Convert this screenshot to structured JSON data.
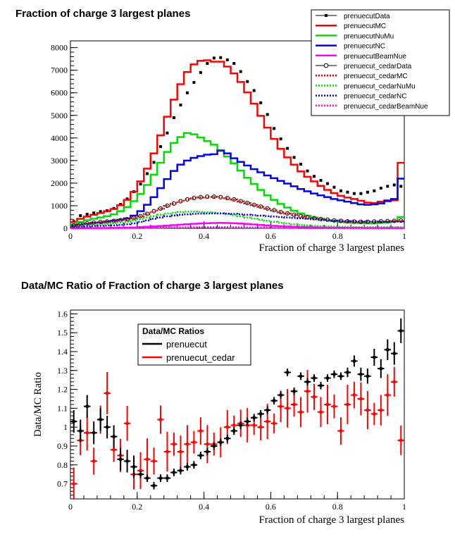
{
  "chart_data": [
    {
      "type": "line",
      "title": "Fraction of charge 3 largest planes",
      "xlabel": "Fraction of charge 3 largest planes",
      "ylabel": "",
      "xlim": [
        0,
        1
      ],
      "ylim": [
        0,
        8300
      ],
      "xticks": [
        "0",
        "0.2",
        "0.4",
        "0.6",
        "0.8",
        "1"
      ],
      "yticks": [
        "0",
        "1000",
        "2000",
        "3000",
        "4000",
        "5000",
        "6000",
        "7000",
        "8000"
      ],
      "bin_edges_step": 0.02,
      "series": [
        {
          "name": "prenuecutData",
          "style": "points",
          "color": "#000000",
          "values": [
            300,
            560,
            620,
            680,
            740,
            780,
            880,
            1060,
            1300,
            1620,
            1960,
            2420,
            2920,
            3620,
            4220,
            4900,
            5460,
            6000,
            6460,
            6900,
            7300,
            7540,
            7560,
            7460,
            7300,
            6940,
            6500,
            6100,
            5560,
            5040,
            4420,
            3960,
            3540,
            3140,
            2840,
            2540,
            2300,
            2120,
            1980,
            1820,
            1660,
            1600,
            1540,
            1540,
            1600,
            1660,
            1780,
            1860,
            1920,
            1860
          ]
        },
        {
          "name": "prenuecutMC",
          "style": "hist",
          "color": "#ff0000",
          "values": [
            280,
            420,
            520,
            600,
            680,
            760,
            860,
            1020,
            1260,
            1620,
            2080,
            2640,
            3320,
            4120,
            4940,
            5700,
            6380,
            6920,
            7260,
            7420,
            7440,
            7380,
            7380,
            7160,
            6860,
            6480,
            6020,
            5520,
            4980,
            4460,
            3960,
            3520,
            3140,
            2820,
            2520,
            2280,
            2080,
            1880,
            1700,
            1560,
            1440,
            1360,
            1300,
            1220,
            1140,
            1120,
            1180,
            1240,
            1240,
            2900
          ]
        },
        {
          "name": "prenuecutNuMu",
          "style": "hist",
          "color": "#00dd00",
          "values": [
            180,
            280,
            360,
            420,
            480,
            540,
            620,
            760,
            940,
            1200,
            1520,
            1920,
            2380,
            2900,
            3380,
            3780,
            4040,
            4220,
            4160,
            4020,
            3860,
            3700,
            3460,
            3180,
            2880,
            2560,
            2240,
            1960,
            1700,
            1460,
            1260,
            1080,
            920,
            780,
            660,
            560,
            480,
            420,
            360,
            320,
            280,
            260,
            240,
            230,
            220,
            220,
            240,
            260,
            300,
            500
          ]
        },
        {
          "name": "prenuecutNC",
          "style": "hist",
          "color": "#0000ee",
          "values": [
            100,
            160,
            200,
            240,
            260,
            300,
            340,
            380,
            440,
            560,
            760,
            1040,
            1380,
            1780,
            2180,
            2540,
            2820,
            3000,
            3120,
            3200,
            3260,
            3280,
            3440,
            3320,
            3100,
            2940,
            2780,
            2620,
            2480,
            2340,
            2220,
            2100,
            1980,
            1860,
            1740,
            1640,
            1540,
            1460,
            1380,
            1300,
            1240,
            1180,
            1120,
            1060,
            1040,
            1060,
            1100,
            1200,
            1300,
            2200
          ]
        },
        {
          "name": "prenuecutBeamNue",
          "style": "hist",
          "color": "#ff00ff",
          "values": [
            5,
            8,
            10,
            12,
            14,
            16,
            20,
            24,
            30,
            40,
            55,
            70,
            85,
            100,
            120,
            140,
            160,
            180,
            200,
            215,
            225,
            235,
            240,
            235,
            225,
            210,
            190,
            170,
            150,
            130,
            110,
            95,
            80,
            70,
            60,
            52,
            45,
            40,
            35,
            30,
            26,
            23,
            20,
            18,
            16,
            15,
            14,
            13,
            12,
            12
          ]
        },
        {
          "name": "prenuecut_cedarData",
          "style": "points-open",
          "color": "#000000",
          "values": [
            120,
            180,
            220,
            250,
            280,
            300,
            330,
            360,
            400,
            460,
            540,
            640,
            760,
            880,
            1000,
            1100,
            1200,
            1280,
            1340,
            1380,
            1400,
            1400,
            1380,
            1340,
            1280,
            1200,
            1120,
            1040,
            960,
            880,
            800,
            720,
            660,
            600,
            540,
            490,
            450,
            410,
            380,
            350,
            330,
            310,
            300,
            290,
            290,
            300,
            310,
            320,
            330,
            340
          ]
        },
        {
          "name": "prenuecut_cedarMC",
          "style": "dotted",
          "color": "#dd0000",
          "values": [
            110,
            170,
            210,
            240,
            270,
            290,
            320,
            350,
            390,
            450,
            530,
            630,
            750,
            870,
            990,
            1090,
            1190,
            1270,
            1330,
            1370,
            1390,
            1390,
            1370,
            1330,
            1270,
            1190,
            1110,
            1030,
            950,
            870,
            790,
            710,
            650,
            590,
            530,
            480,
            440,
            400,
            370,
            340,
            320,
            300,
            290,
            280,
            280,
            290,
            300,
            310,
            320,
            330
          ]
        },
        {
          "name": "prenuecut_cedarNuMu",
          "style": "dotted",
          "color": "#00dd00",
          "values": [
            70,
            110,
            140,
            160,
            180,
            200,
            220,
            250,
            290,
            340,
            400,
            470,
            540,
            600,
            650,
            690,
            720,
            740,
            740,
            730,
            710,
            690,
            660,
            620,
            580,
            530,
            480,
            430,
            380,
            330,
            290,
            250,
            210,
            180,
            150,
            130,
            110,
            95,
            85,
            75,
            68,
            62,
            58,
            55,
            53,
            52,
            52,
            53,
            54,
            55
          ]
        },
        {
          "name": "prenuecut_cedarNC",
          "style": "dotted",
          "color": "#0000dd",
          "values": [
            40,
            60,
            80,
            100,
            110,
            120,
            130,
            150,
            180,
            220,
            280,
            350,
            420,
            480,
            530,
            570,
            600,
            620,
            640,
            650,
            655,
            660,
            660,
            650,
            640,
            620,
            600,
            580,
            560,
            540,
            520,
            500,
            480,
            460,
            440,
            420,
            400,
            380,
            360,
            340,
            330,
            320,
            310,
            300,
            295,
            290,
            290,
            295,
            300,
            305
          ]
        },
        {
          "name": "prenuecut_cedarBeamNue",
          "style": "dotted",
          "color": "#ff00ff",
          "values": [
            2,
            3,
            4,
            5,
            5,
            6,
            7,
            9,
            11,
            14,
            18,
            23,
            28,
            33,
            38,
            42,
            46,
            50,
            53,
            55,
            56,
            56,
            55,
            53,
            50,
            46,
            42,
            38,
            34,
            30,
            26,
            22,
            19,
            16,
            14,
            12,
            10,
            9,
            8,
            7,
            6,
            5,
            5,
            4,
            4,
            4,
            3,
            3,
            3,
            3
          ]
        }
      ]
    },
    {
      "type": "scatter",
      "title": "Data/MC Ratio of Fraction of charge 3 largest planes",
      "xlabel": "Fraction of charge 3 largest planes",
      "ylabel": "Data/MC Ratio",
      "xlim": [
        0,
        1
      ],
      "ylim": [
        0.62,
        1.62
      ],
      "xticks": [
        "0",
        "0.2",
        "0.4",
        "0.6",
        "0.8",
        "1"
      ],
      "yticks": [
        "0.7",
        "0.8",
        "0.9",
        "1",
        "1.1",
        "1.2",
        "1.3",
        "1.4",
        "1.5",
        "1.6"
      ],
      "legend_title": "Data/MC Ratios",
      "series": [
        {
          "name": "prenuecut",
          "color": "#000000",
          "x": [
            0.01,
            0.03,
            0.05,
            0.07,
            0.09,
            0.11,
            0.13,
            0.15,
            0.17,
            0.19,
            0.21,
            0.23,
            0.25,
            0.27,
            0.29,
            0.31,
            0.33,
            0.35,
            0.37,
            0.39,
            0.41,
            0.43,
            0.45,
            0.47,
            0.49,
            0.51,
            0.53,
            0.55,
            0.57,
            0.59,
            0.61,
            0.63,
            0.65,
            0.67,
            0.69,
            0.71,
            0.73,
            0.75,
            0.77,
            0.79,
            0.81,
            0.83,
            0.85,
            0.87,
            0.89,
            0.91,
            0.93,
            0.95,
            0.97,
            0.99
          ],
          "y": [
            1.03,
            0.98,
            1.11,
            0.97,
            1.04,
            1.0,
            0.95,
            0.83,
            0.82,
            0.79,
            0.75,
            0.73,
            0.69,
            0.73,
            0.73,
            0.76,
            0.77,
            0.79,
            0.8,
            0.85,
            0.87,
            0.9,
            0.92,
            0.94,
            0.98,
            1.01,
            1.03,
            1.05,
            1.07,
            1.09,
            1.14,
            1.17,
            1.29,
            1.19,
            1.27,
            1.24,
            1.26,
            1.22,
            1.26,
            1.28,
            1.27,
            1.29,
            1.35,
            1.28,
            1.27,
            1.37,
            1.31,
            1.41,
            1.39,
            1.51
          ]
        },
        {
          "name": "prenuecut_cedar",
          "color": "#ff0000",
          "x": [
            0.01,
            0.03,
            0.05,
            0.07,
            0.09,
            0.11,
            0.13,
            0.15,
            0.17,
            0.19,
            0.21,
            0.23,
            0.25,
            0.27,
            0.29,
            0.31,
            0.33,
            0.35,
            0.37,
            0.39,
            0.41,
            0.43,
            0.45,
            0.47,
            0.49,
            0.51,
            0.53,
            0.55,
            0.57,
            0.59,
            0.61,
            0.63,
            0.65,
            0.67,
            0.69,
            0.71,
            0.73,
            0.75,
            0.77,
            0.79,
            0.81,
            0.83,
            0.85,
            0.87,
            0.89,
            0.91,
            0.93,
            0.95,
            0.97,
            0.99
          ],
          "y": [
            0.7,
            0.93,
            0.97,
            0.82,
            1.04,
            1.18,
            0.88,
            0.85,
            1.02,
            0.75,
            0.77,
            0.83,
            0.82,
            1.04,
            0.87,
            0.91,
            0.87,
            0.91,
            0.92,
            0.98,
            0.91,
            0.91,
            0.92,
            1.0,
            1.01,
            1.02,
            1.01,
            1.01,
            1.0,
            1.03,
            1.02,
            1.11,
            1.1,
            1.12,
            1.08,
            1.19,
            1.16,
            1.08,
            1.12,
            1.11,
            0.98,
            1.12,
            1.17,
            1.15,
            1.09,
            1.07,
            1.09,
            1.17,
            1.24,
            0.93
          ]
        }
      ]
    }
  ]
}
